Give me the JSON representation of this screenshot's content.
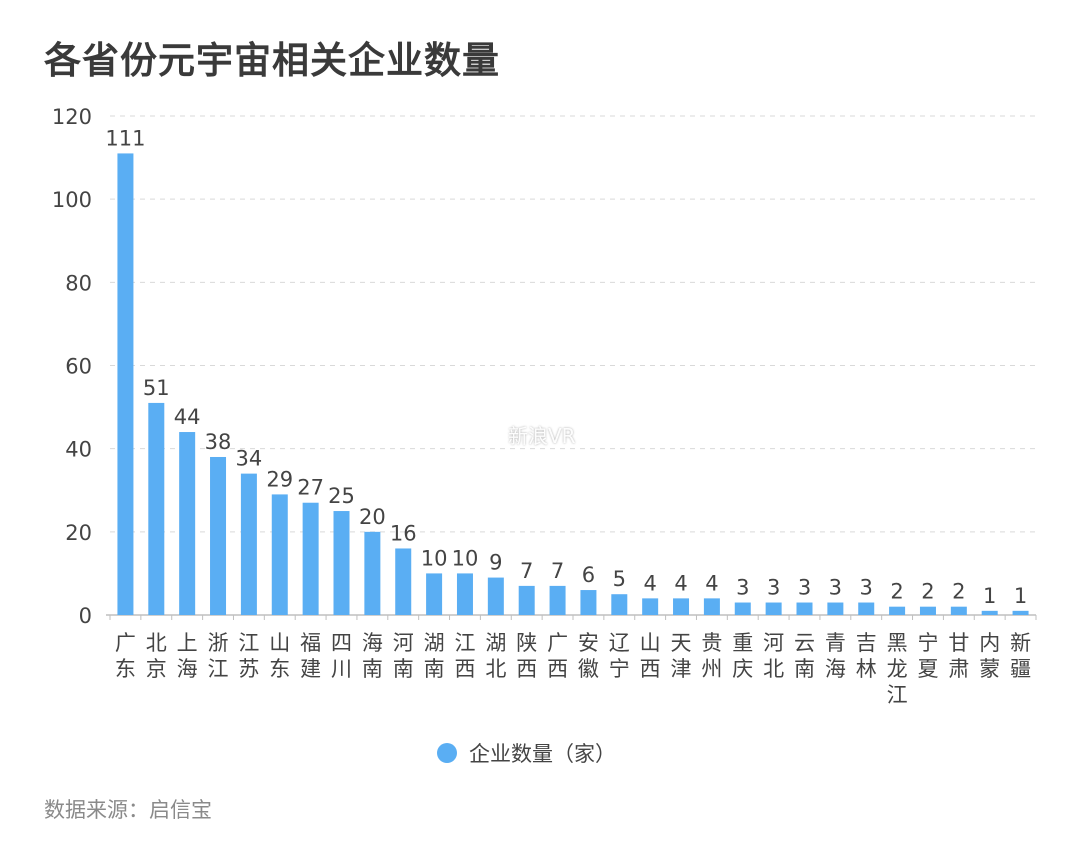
{
  "title": "各省份元宇宙相关企业数量",
  "source": "数据来源：启信宝",
  "watermark": "新浪VR",
  "legend": {
    "label": "企业数量（家）",
    "color": "#5aaef3"
  },
  "chart_data": {
    "type": "bar",
    "categories": [
      "广东",
      "北京",
      "上海",
      "浙江",
      "江苏",
      "山东",
      "福建",
      "四川",
      "海南",
      "河南",
      "湖南",
      "江西",
      "湖北",
      "陕西",
      "广西",
      "安徽",
      "辽宁",
      "山西",
      "天津",
      "贵州",
      "重庆",
      "河北",
      "云南",
      "青海",
      "吉林",
      "黑龙江",
      "宁夏",
      "甘肃",
      "内蒙",
      "新疆"
    ],
    "series": [
      {
        "name": "企业数量（家）",
        "values": [
          111,
          51,
          44,
          38,
          34,
          29,
          27,
          25,
          20,
          16,
          10,
          10,
          9,
          7,
          7,
          6,
          5,
          4,
          4,
          4,
          3,
          3,
          3,
          3,
          3,
          2,
          2,
          2,
          1,
          1
        ]
      }
    ],
    "yticks": [
      0,
      20,
      40,
      60,
      80,
      100,
      120
    ],
    "ylim": [
      0,
      120
    ],
    "grid": true,
    "legend_position": "bottom-center",
    "bar_color": "#5aaef3"
  }
}
